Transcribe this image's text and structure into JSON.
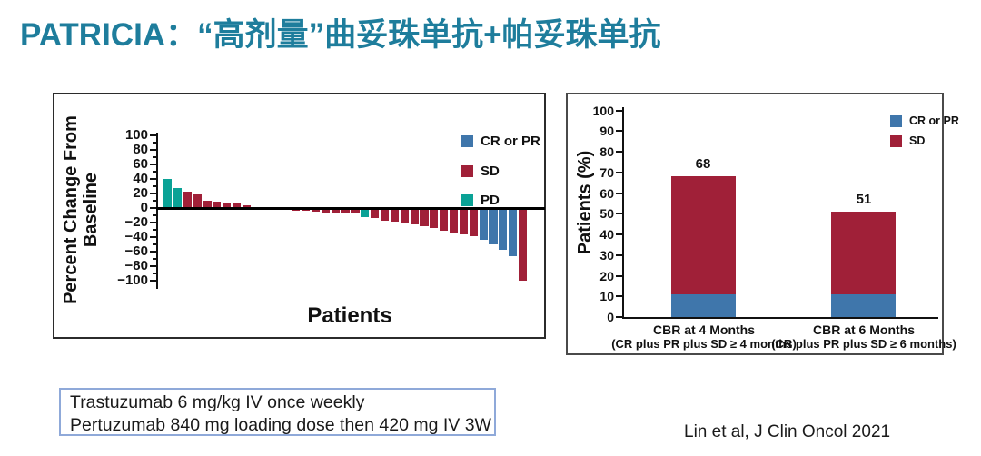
{
  "slide": {
    "title": "PATRICIA：“高剂量”曲妥珠单抗+帕妥珠单抗",
    "title_color": "#1E7D9C",
    "dose_box": {
      "line1": "Trastuzumab 6 mg/kg IV once weekly",
      "line2": "Pertuzumab 840 mg loading dose then 420 mg IV 3W"
    },
    "citation": "Lin et al, J Clin Oncol 2021"
  },
  "colors": {
    "cr_pr": "#3F76AB",
    "sd": "#A02038",
    "pd": "#0AA296",
    "axis": "#111111"
  },
  "chart_data": [
    {
      "type": "bar",
      "subtype": "waterfall",
      "title": "",
      "xlabel": "Patients",
      "ylabel_line1": "Percent Change From",
      "ylabel_line2": "Baseline",
      "ylim": [
        -100,
        100
      ],
      "yticks": [
        100,
        80,
        60,
        40,
        20,
        0,
        -20,
        -40,
        -60,
        -80,
        -100
      ],
      "grid": false,
      "legend_position": "top-right",
      "legend": [
        {
          "label": "CR or PR",
          "color_key": "cr_pr"
        },
        {
          "label": "SD",
          "color_key": "sd"
        },
        {
          "label": "PD",
          "color_key": "pd"
        }
      ],
      "bars": [
        {
          "value": 40,
          "group": "pd"
        },
        {
          "value": 27,
          "group": "pd"
        },
        {
          "value": 23,
          "group": "sd"
        },
        {
          "value": 19,
          "group": "sd"
        },
        {
          "value": 10,
          "group": "sd"
        },
        {
          "value": 9,
          "group": "sd"
        },
        {
          "value": 8,
          "group": "sd"
        },
        {
          "value": 8,
          "group": "sd"
        },
        {
          "value": 4,
          "group": "sd"
        },
        {
          "value": 0,
          "group": "sd"
        },
        {
          "value": 0,
          "group": "sd"
        },
        {
          "value": 0,
          "group": "sd"
        },
        {
          "value": -3,
          "group": "sd"
        },
        {
          "value": -4,
          "group": "sd"
        },
        {
          "value": -4,
          "group": "sd"
        },
        {
          "value": -5,
          "group": "sd"
        },
        {
          "value": -6,
          "group": "sd"
        },
        {
          "value": -7,
          "group": "sd"
        },
        {
          "value": -7,
          "group": "sd"
        },
        {
          "value": -8,
          "group": "sd"
        },
        {
          "value": -12,
          "group": "pd"
        },
        {
          "value": -14,
          "group": "sd"
        },
        {
          "value": -17,
          "group": "sd"
        },
        {
          "value": -19,
          "group": "sd"
        },
        {
          "value": -21,
          "group": "sd"
        },
        {
          "value": -23,
          "group": "sd"
        },
        {
          "value": -25,
          "group": "sd"
        },
        {
          "value": -28,
          "group": "sd"
        },
        {
          "value": -31,
          "group": "sd"
        },
        {
          "value": -34,
          "group": "sd"
        },
        {
          "value": -36,
          "group": "sd"
        },
        {
          "value": -39,
          "group": "sd"
        },
        {
          "value": -44,
          "group": "cr_pr"
        },
        {
          "value": -50,
          "group": "cr_pr"
        },
        {
          "value": -57,
          "group": "cr_pr"
        },
        {
          "value": -66,
          "group": "cr_pr"
        },
        {
          "value": -100,
          "group": "sd"
        }
      ]
    },
    {
      "type": "bar",
      "subtype": "stacked",
      "title": "",
      "ylabel": "Patients (%)",
      "ylim": [
        0,
        100
      ],
      "yticks": [
        0,
        10,
        20,
        30,
        40,
        50,
        60,
        70,
        80,
        90,
        100
      ],
      "grid": false,
      "legend_position": "top-right",
      "legend": [
        {
          "label": "CR or PR",
          "color_key": "cr_pr"
        },
        {
          "label": "SD",
          "color_key": "sd"
        }
      ],
      "categories": [
        "CBR at 4 Months",
        "CBR at 6 Months"
      ],
      "category_sublabels": [
        "(CR plus PR plus SD ≥ 4 months)",
        "(CR plus PR plus SD ≥ 6 months)"
      ],
      "series": [
        {
          "name": "CR or PR",
          "color_key": "cr_pr",
          "values": [
            11,
            11
          ]
        },
        {
          "name": "SD",
          "color_key": "sd",
          "values": [
            57,
            40
          ]
        }
      ],
      "totals": [
        68,
        51
      ]
    }
  ]
}
